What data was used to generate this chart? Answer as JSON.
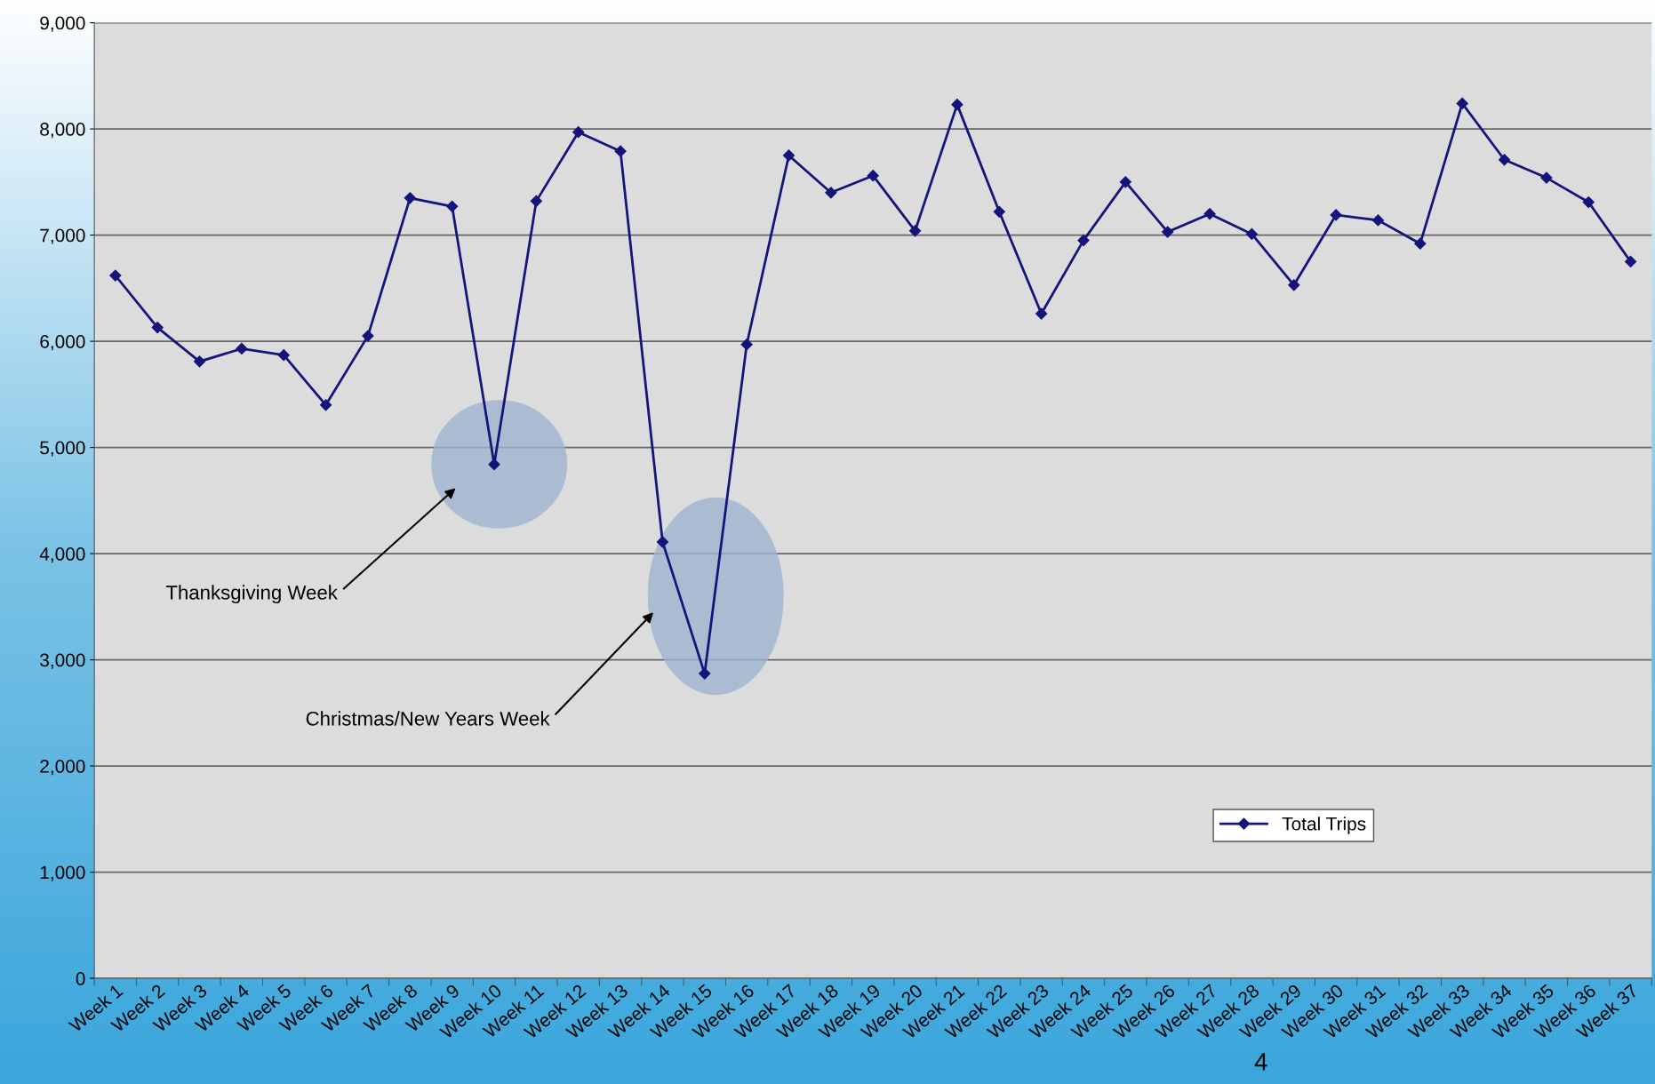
{
  "chart_data": {
    "type": "line",
    "categories": [
      "Week 1",
      "Week 2",
      "Week 3",
      "Week 4",
      "Week 5",
      "Week 6",
      "Week 7",
      "Week 8",
      "Week 9",
      "Week 10",
      "Week 11",
      "Week 12",
      "Week 13",
      "Week 14",
      "Week 15",
      "Week 16",
      "Week 17",
      "Week 18",
      "Week 19",
      "Week 20",
      "Week 21",
      "Week 22",
      "Week 23",
      "Week 24",
      "Week 25",
      "Week 26",
      "Week 27",
      "Week 28",
      "Week 29",
      "Week 30",
      "Week 31",
      "Week 32",
      "Week 33",
      "Week 34",
      "Week 35",
      "Week 36",
      "Week 37"
    ],
    "series": [
      {
        "name": "Total Trips",
        "color": "#14147a",
        "values": [
          6620,
          6130,
          5810,
          5930,
          5870,
          5400,
          6050,
          7350,
          7270,
          4840,
          7320,
          7970,
          7790,
          4110,
          2870,
          5970,
          7750,
          7400,
          7560,
          7040,
          8230,
          7220,
          6260,
          6950,
          7500,
          7030,
          7200,
          7010,
          6530,
          7190,
          7140,
          6920,
          8240,
          7710,
          7540,
          7310,
          6750
        ]
      }
    ],
    "ylim": [
      0,
      9000
    ],
    "yticks": [
      {
        "value": 0,
        "label": "0"
      },
      {
        "value": 1000,
        "label": "1,000"
      },
      {
        "value": 2000,
        "label": "2,000"
      },
      {
        "value": 3000,
        "label": "3,000"
      },
      {
        "value": 4000,
        "label": "4,000"
      },
      {
        "value": 5000,
        "label": "5,000"
      },
      {
        "value": 6000,
        "label": "6,000"
      },
      {
        "value": 7000,
        "label": "7,000"
      },
      {
        "value": 8000,
        "label": "8,000"
      },
      {
        "value": 9000,
        "label": "9,000"
      }
    ],
    "grid": "y",
    "legend": "bottom right",
    "marker": "diamond",
    "line_style": "solid",
    "annotations": [
      "Thanksgiving Week",
      "Christmas/New Years Week",
      "4"
    ]
  }
}
